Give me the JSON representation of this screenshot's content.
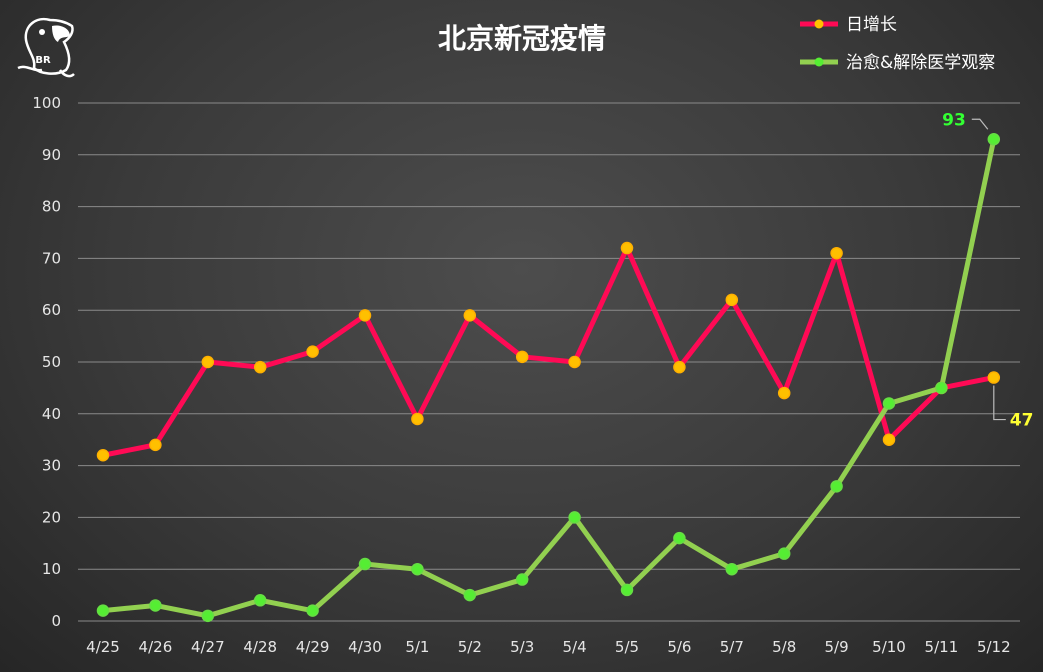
{
  "chart_data": {
    "type": "line",
    "title": "北京新冠疫情",
    "categories": [
      "4/25",
      "4/26",
      "4/27",
      "4/28",
      "4/29",
      "4/30",
      "5/1",
      "5/2",
      "5/3",
      "5/4",
      "5/5",
      "5/6",
      "5/7",
      "5/8",
      "5/9",
      "5/10",
      "5/11",
      "5/12"
    ],
    "series": [
      {
        "name": "日增长",
        "values": [
          32,
          34,
          50,
          49,
          52,
          59,
          39,
          59,
          51,
          50,
          72,
          49,
          62,
          44,
          71,
          35,
          45,
          47
        ],
        "line_color": "#ff0a55",
        "marker_color": "#ffc000"
      },
      {
        "name": "治愈&解除医学观察",
        "values": [
          2,
          3,
          1,
          4,
          2,
          11,
          10,
          5,
          8,
          20,
          6,
          16,
          10,
          13,
          26,
          42,
          45,
          93
        ],
        "line_color": "#92d050",
        "marker_color": "#55ee33"
      }
    ],
    "ylim": [
      0,
      100
    ],
    "yticks": [
      0,
      10,
      20,
      30,
      40,
      50,
      60,
      70,
      80,
      90,
      100
    ],
    "grid": true,
    "legend_position": "top-right",
    "data_labels": [
      {
        "series": 1,
        "index": 17,
        "text": "93"
      },
      {
        "series": 0,
        "index": 17,
        "text": "47"
      }
    ],
    "logo": {
      "text": "BR",
      "icon": "parrot-logo"
    }
  }
}
